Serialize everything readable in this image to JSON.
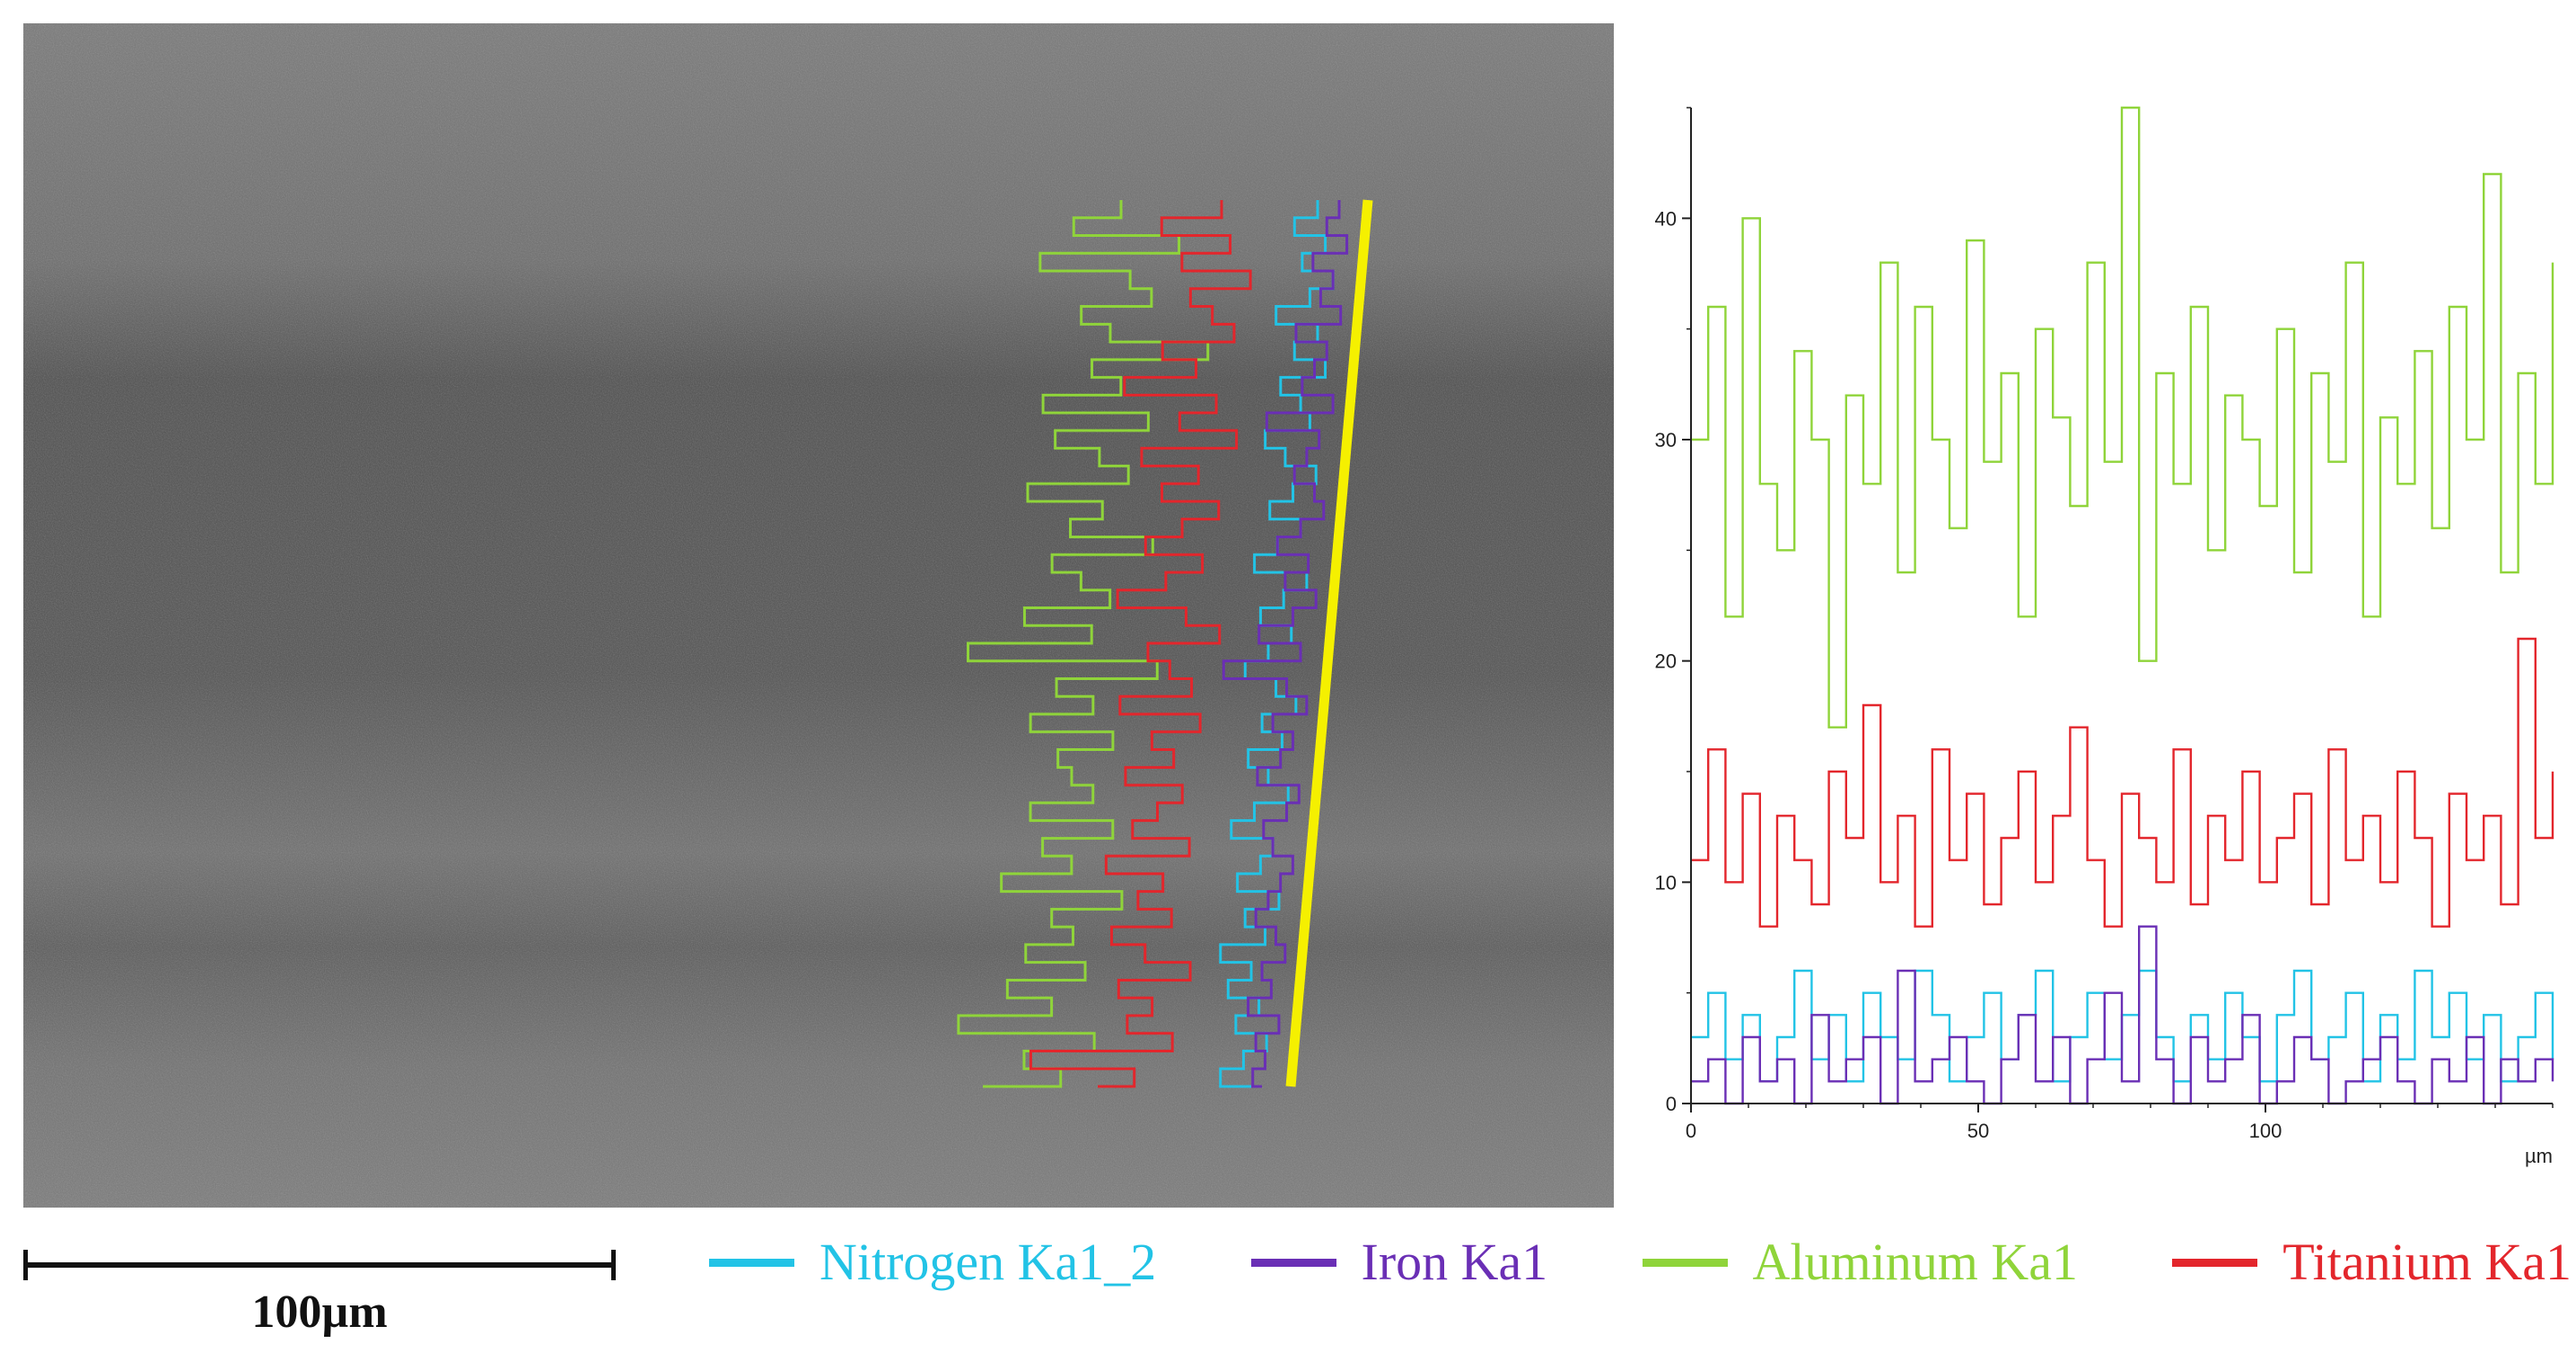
{
  "colors": {
    "nitrogen": "#22c3e6",
    "iron": "#6a2fb5",
    "aluminum": "#8fd43a",
    "titanium": "#e3262c",
    "scan_line": "#f5f000",
    "sem_background": "#6b6b6b"
  },
  "scale_bar": {
    "label": "100µm"
  },
  "legend": {
    "items": [
      {
        "label": "Nitrogen Ka1_2",
        "color": "#22c3e6",
        "icon": "line-swatch-icon"
      },
      {
        "label": "Iron Ka1",
        "color": "#6a2fb5",
        "icon": "line-swatch-icon"
      },
      {
        "label": "Aluminum Ka1",
        "color": "#8fd43a",
        "icon": "line-swatch-icon"
      },
      {
        "label": "Titanium Ka1",
        "color": "#e3262c",
        "icon": "line-swatch-icon"
      }
    ]
  },
  "chart_data": {
    "type": "line",
    "title": "",
    "xlabel": "µm",
    "ylabel": "",
    "xlim": [
      0,
      150
    ],
    "ylim": [
      0,
      45
    ],
    "xticks": [
      0,
      50,
      100
    ],
    "yticks": [
      0,
      10,
      20,
      30,
      40
    ],
    "grid": false,
    "legend_position": "bottom",
    "step_interpolation": true,
    "x": [
      0,
      3,
      6,
      9,
      12,
      15,
      18,
      21,
      24,
      27,
      30,
      33,
      36,
      39,
      42,
      45,
      48,
      51,
      54,
      57,
      60,
      63,
      66,
      69,
      72,
      75,
      78,
      81,
      84,
      87,
      90,
      93,
      96,
      99,
      102,
      105,
      108,
      111,
      114,
      117,
      120,
      123,
      126,
      129,
      132,
      135,
      138,
      141,
      144,
      147,
      150
    ],
    "series": [
      {
        "name": "Aluminum Ka1",
        "color": "#8fd43a",
        "values": [
          30,
          36,
          22,
          40,
          28,
          25,
          34,
          30,
          17,
          32,
          28,
          38,
          24,
          36,
          30,
          26,
          39,
          29,
          33,
          22,
          35,
          31,
          27,
          38,
          29,
          45,
          20,
          33,
          28,
          36,
          25,
          32,
          30,
          27,
          35,
          24,
          33,
          29,
          38,
          22,
          31,
          28,
          34,
          26,
          36,
          30,
          42,
          24,
          33,
          28,
          38
        ]
      },
      {
        "name": "Titanium Ka1",
        "color": "#e3262c",
        "values": [
          11,
          16,
          10,
          14,
          8,
          13,
          11,
          9,
          15,
          12,
          18,
          10,
          13,
          8,
          16,
          11,
          14,
          9,
          12,
          15,
          10,
          13,
          17,
          11,
          8,
          14,
          12,
          10,
          16,
          9,
          13,
          11,
          15,
          10,
          12,
          14,
          9,
          16,
          11,
          13,
          10,
          15,
          12,
          8,
          14,
          11,
          13,
          9,
          21,
          12,
          15
        ]
      },
      {
        "name": "Nitrogen Ka1_2",
        "color": "#22c3e6",
        "values": [
          3,
          5,
          2,
          4,
          1,
          3,
          6,
          2,
          4,
          1,
          5,
          3,
          2,
          6,
          4,
          1,
          3,
          5,
          2,
          4,
          6,
          1,
          3,
          5,
          2,
          4,
          6,
          3,
          1,
          4,
          2,
          5,
          3,
          1,
          4,
          6,
          2,
          3,
          5,
          1,
          4,
          2,
          6,
          3,
          5,
          2,
          4,
          1,
          3,
          5,
          2
        ]
      },
      {
        "name": "Iron Ka1",
        "color": "#6a2fb5",
        "values": [
          1,
          2,
          0,
          3,
          1,
          2,
          0,
          4,
          1,
          2,
          3,
          0,
          6,
          1,
          2,
          3,
          1,
          0,
          2,
          4,
          1,
          3,
          0,
          2,
          5,
          1,
          8,
          2,
          0,
          3,
          1,
          2,
          4,
          0,
          1,
          3,
          2,
          0,
          1,
          2,
          3,
          1,
          0,
          2,
          1,
          3,
          0,
          2,
          1,
          2,
          1
        ]
      }
    ]
  }
}
